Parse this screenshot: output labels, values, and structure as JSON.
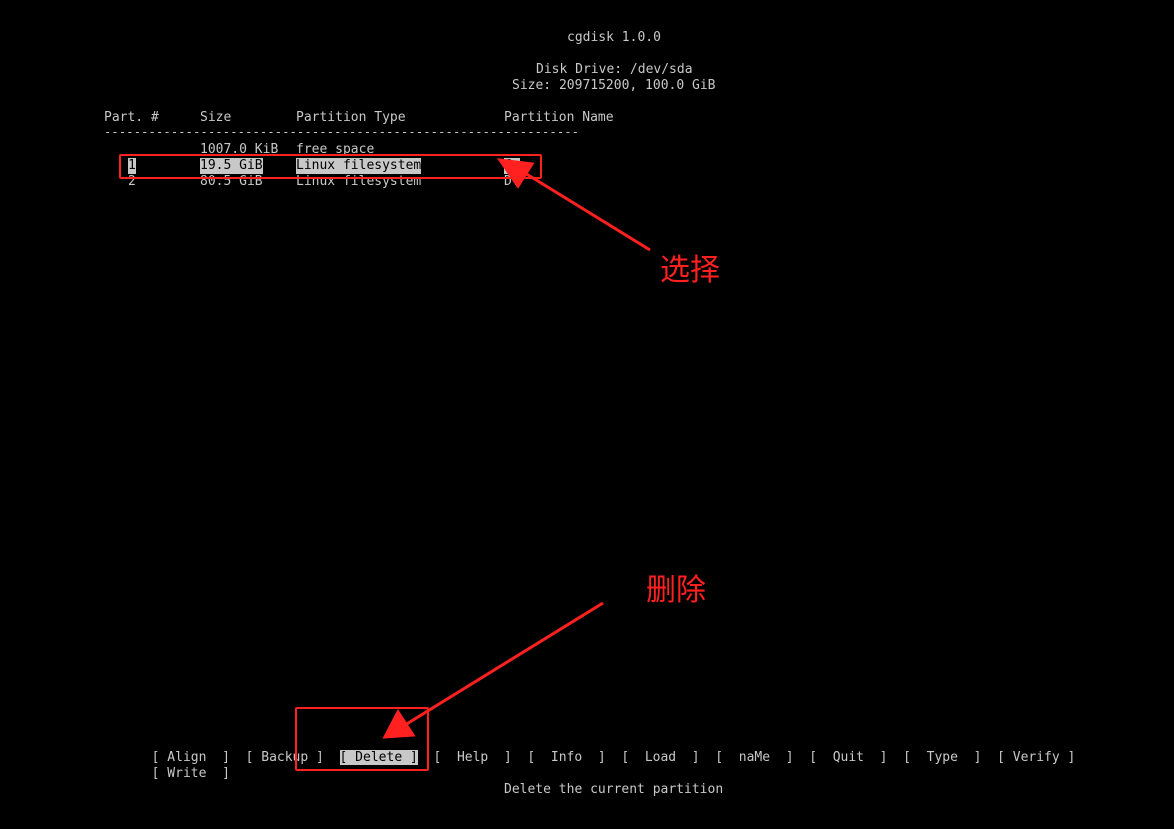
{
  "header": {
    "app_title": "cgdisk 1.0.0",
    "disk_drive": "Disk Drive: /dev/sda",
    "disk_size": "Size: 209715200, 100.0 GiB"
  },
  "table": {
    "columns": [
      "Part. #",
      "Size",
      "Partition Type",
      "Partition Name"
    ],
    "separator": "----------------------------------------------------------------",
    "rows": [
      {
        "part": "",
        "size": "1007.0 KiB",
        "type": "free space",
        "name": ""
      },
      {
        "part": "1",
        "size": "19.5 GiB",
        "type": "Linux filesystem",
        "name": "C:"
      },
      {
        "part": "2",
        "size": "80.5 GiB",
        "type": "Linux filesystem",
        "name": "D:"
      }
    ]
  },
  "menu": {
    "items": [
      {
        "label": "[ Align  ]"
      },
      {
        "label": "[ Backup ]"
      },
      {
        "label": "[ Delete ]",
        "selected": true
      },
      {
        "label": "[  Help  ]"
      },
      {
        "label": "[  Info  ]"
      },
      {
        "label": "[  Load  ]"
      },
      {
        "label": "[  naMe  ]"
      },
      {
        "label": "[  Quit  ]"
      },
      {
        "label": "[  Type  ]"
      },
      {
        "label": "[ Verify ]"
      },
      {
        "label": "[ Write  ]"
      }
    ],
    "status": "Delete the current partition"
  },
  "annotations": {
    "select_label": "选择",
    "delete_label": "删除",
    "color": "#ff2020"
  }
}
